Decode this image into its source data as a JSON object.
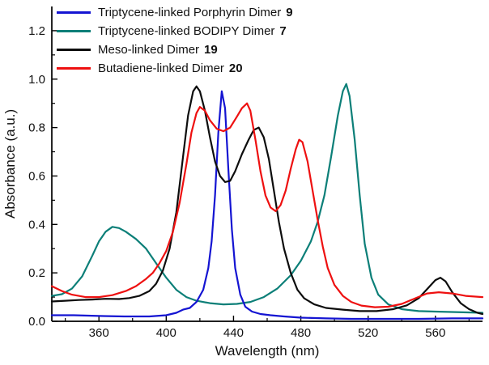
{
  "chart_data": {
    "type": "line",
    "title": "",
    "xlabel": "Wavelength (nm)",
    "ylabel": "Absorbance (a.u.)",
    "xlim": [
      332,
      588
    ],
    "ylim": [
      0,
      1.3
    ],
    "xticks": [
      360,
      400,
      440,
      480,
      520,
      560
    ],
    "yticks": [
      0.0,
      0.2,
      0.4,
      0.6,
      0.8,
      1.0,
      1.2
    ],
    "x_minor_step": 20,
    "y_minor_step": 0.1,
    "grid": false,
    "legend_position": "top-left",
    "axis_color": "#000000",
    "series": [
      {
        "label": "Triptycene-linked Porphyrin Dimer",
        "number": "9",
        "color": "#1414d2",
        "points": [
          [
            332,
            0.025
          ],
          [
            345,
            0.025
          ],
          [
            360,
            0.022
          ],
          [
            375,
            0.02
          ],
          [
            390,
            0.02
          ],
          [
            400,
            0.025
          ],
          [
            406,
            0.035
          ],
          [
            410,
            0.048
          ],
          [
            414,
            0.055
          ],
          [
            418,
            0.08
          ],
          [
            422,
            0.13
          ],
          [
            425,
            0.22
          ],
          [
            427,
            0.33
          ],
          [
            429,
            0.52
          ],
          [
            431,
            0.78
          ],
          [
            433,
            0.95
          ],
          [
            435,
            0.88
          ],
          [
            437,
            0.62
          ],
          [
            439,
            0.38
          ],
          [
            441,
            0.22
          ],
          [
            444,
            0.11
          ],
          [
            447,
            0.06
          ],
          [
            451,
            0.04
          ],
          [
            456,
            0.03
          ],
          [
            462,
            0.025
          ],
          [
            470,
            0.02
          ],
          [
            480,
            0.015
          ],
          [
            495,
            0.012
          ],
          [
            510,
            0.01
          ],
          [
            530,
            0.01
          ],
          [
            550,
            0.01
          ],
          [
            570,
            0.012
          ],
          [
            588,
            0.012
          ]
        ]
      },
      {
        "label": "Triptycene-linked BODIPY Dimer",
        "number": "7",
        "color": "#0c7f78",
        "points": [
          [
            332,
            0.105
          ],
          [
            338,
            0.112
          ],
          [
            344,
            0.135
          ],
          [
            350,
            0.185
          ],
          [
            356,
            0.27
          ],
          [
            360,
            0.33
          ],
          [
            364,
            0.37
          ],
          [
            368,
            0.39
          ],
          [
            372,
            0.385
          ],
          [
            376,
            0.37
          ],
          [
            382,
            0.34
          ],
          [
            388,
            0.3
          ],
          [
            394,
            0.24
          ],
          [
            400,
            0.18
          ],
          [
            406,
            0.13
          ],
          [
            412,
            0.1
          ],
          [
            418,
            0.085
          ],
          [
            426,
            0.075
          ],
          [
            434,
            0.07
          ],
          [
            442,
            0.072
          ],
          [
            450,
            0.08
          ],
          [
            458,
            0.1
          ],
          [
            466,
            0.135
          ],
          [
            474,
            0.19
          ],
          [
            480,
            0.25
          ],
          [
            486,
            0.33
          ],
          [
            490,
            0.41
          ],
          [
            494,
            0.52
          ],
          [
            498,
            0.68
          ],
          [
            502,
            0.85
          ],
          [
            505,
            0.95
          ],
          [
            507,
            0.98
          ],
          [
            509,
            0.93
          ],
          [
            512,
            0.75
          ],
          [
            515,
            0.52
          ],
          [
            518,
            0.32
          ],
          [
            522,
            0.18
          ],
          [
            526,
            0.11
          ],
          [
            532,
            0.07
          ],
          [
            540,
            0.05
          ],
          [
            550,
            0.042
          ],
          [
            560,
            0.04
          ],
          [
            572,
            0.038
          ],
          [
            588,
            0.035
          ]
        ]
      },
      {
        "label": "Meso-linked Dimer",
        "number": "19",
        "color": "#0d0d0d",
        "points": [
          [
            332,
            0.082
          ],
          [
            340,
            0.085
          ],
          [
            348,
            0.088
          ],
          [
            356,
            0.09
          ],
          [
            364,
            0.093
          ],
          [
            372,
            0.092
          ],
          [
            378,
            0.096
          ],
          [
            384,
            0.105
          ],
          [
            390,
            0.125
          ],
          [
            394,
            0.155
          ],
          [
            398,
            0.21
          ],
          [
            402,
            0.3
          ],
          [
            406,
            0.45
          ],
          [
            410,
            0.68
          ],
          [
            413,
            0.85
          ],
          [
            416,
            0.95
          ],
          [
            418,
            0.97
          ],
          [
            420,
            0.95
          ],
          [
            423,
            0.87
          ],
          [
            426,
            0.76
          ],
          [
            429,
            0.66
          ],
          [
            432,
            0.6
          ],
          [
            435,
            0.575
          ],
          [
            438,
            0.58
          ],
          [
            441,
            0.62
          ],
          [
            445,
            0.69
          ],
          [
            449,
            0.75
          ],
          [
            452,
            0.79
          ],
          [
            455,
            0.8
          ],
          [
            458,
            0.76
          ],
          [
            461,
            0.67
          ],
          [
            464,
            0.54
          ],
          [
            467,
            0.41
          ],
          [
            470,
            0.3
          ],
          [
            474,
            0.2
          ],
          [
            478,
            0.13
          ],
          [
            482,
            0.095
          ],
          [
            488,
            0.07
          ],
          [
            495,
            0.055
          ],
          [
            505,
            0.048
          ],
          [
            515,
            0.042
          ],
          [
            525,
            0.042
          ],
          [
            535,
            0.05
          ],
          [
            543,
            0.066
          ],
          [
            550,
            0.095
          ],
          [
            556,
            0.14
          ],
          [
            560,
            0.17
          ],
          [
            563,
            0.18
          ],
          [
            566,
            0.165
          ],
          [
            570,
            0.12
          ],
          [
            575,
            0.075
          ],
          [
            580,
            0.05
          ],
          [
            585,
            0.035
          ],
          [
            588,
            0.03
          ]
        ]
      },
      {
        "label": "Butadiene-linked Dimer",
        "number": "20",
        "color": "#ee1010",
        "points": [
          [
            332,
            0.145
          ],
          [
            338,
            0.125
          ],
          [
            344,
            0.11
          ],
          [
            352,
            0.1
          ],
          [
            360,
            0.1
          ],
          [
            368,
            0.108
          ],
          [
            376,
            0.125
          ],
          [
            382,
            0.145
          ],
          [
            388,
            0.175
          ],
          [
            392,
            0.2
          ],
          [
            396,
            0.24
          ],
          [
            400,
            0.29
          ],
          [
            404,
            0.37
          ],
          [
            408,
            0.49
          ],
          [
            412,
            0.65
          ],
          [
            415,
            0.78
          ],
          [
            418,
            0.86
          ],
          [
            420,
            0.885
          ],
          [
            423,
            0.87
          ],
          [
            426,
            0.83
          ],
          [
            430,
            0.795
          ],
          [
            434,
            0.785
          ],
          [
            438,
            0.8
          ],
          [
            442,
            0.845
          ],
          [
            445,
            0.88
          ],
          [
            448,
            0.9
          ],
          [
            450,
            0.87
          ],
          [
            453,
            0.75
          ],
          [
            456,
            0.62
          ],
          [
            459,
            0.52
          ],
          [
            462,
            0.47
          ],
          [
            465,
            0.455
          ],
          [
            468,
            0.48
          ],
          [
            471,
            0.54
          ],
          [
            474,
            0.63
          ],
          [
            477,
            0.71
          ],
          [
            479,
            0.75
          ],
          [
            481,
            0.74
          ],
          [
            484,
            0.66
          ],
          [
            487,
            0.54
          ],
          [
            490,
            0.42
          ],
          [
            493,
            0.31
          ],
          [
            496,
            0.22
          ],
          [
            500,
            0.15
          ],
          [
            505,
            0.105
          ],
          [
            510,
            0.08
          ],
          [
            516,
            0.065
          ],
          [
            524,
            0.058
          ],
          [
            532,
            0.06
          ],
          [
            540,
            0.072
          ],
          [
            548,
            0.095
          ],
          [
            555,
            0.115
          ],
          [
            562,
            0.12
          ],
          [
            570,
            0.115
          ],
          [
            578,
            0.105
          ],
          [
            588,
            0.1
          ]
        ]
      }
    ],
    "draw_order": [
      1,
      0,
      2,
      3
    ]
  }
}
